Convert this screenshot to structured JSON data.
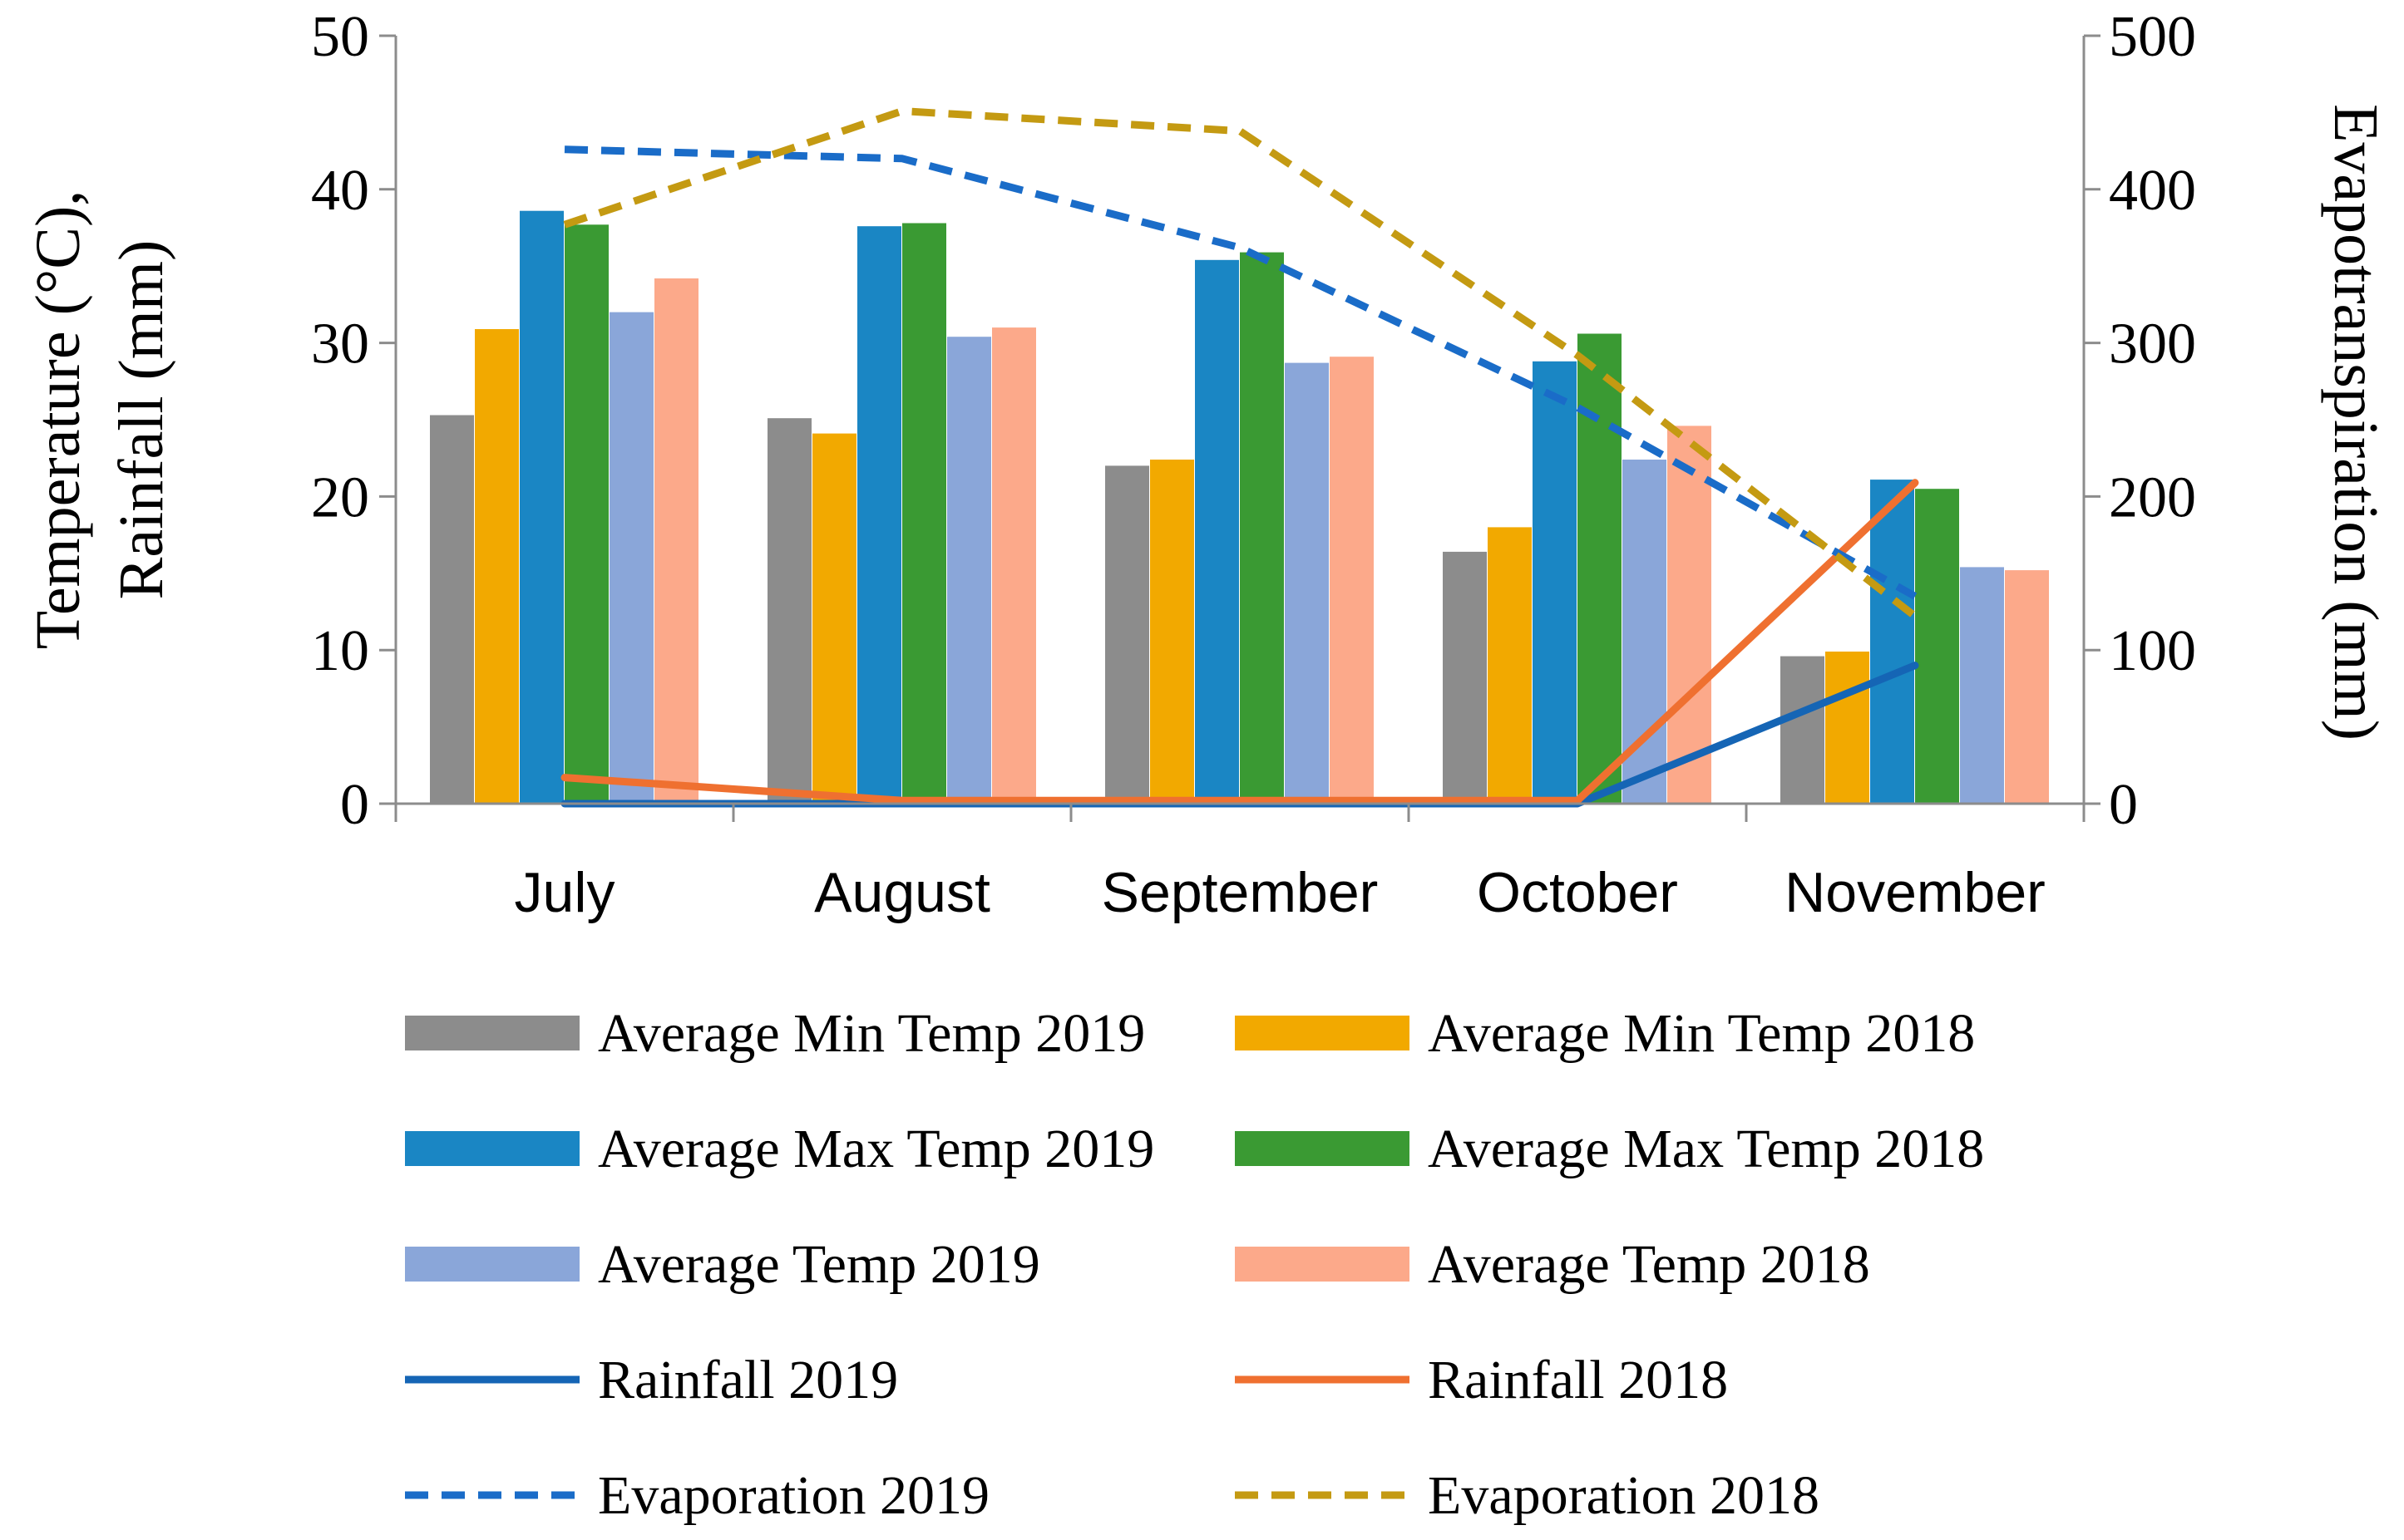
{
  "chart_data": {
    "type": "bar",
    "categories": [
      "July",
      "August",
      "September",
      "October",
      "November"
    ],
    "ylabel_lines": [
      "Temperature (°C),",
      "Rainfall (mm)"
    ],
    "y2label": "Evapotranspiration  (mm)",
    "ylim": [
      0,
      50
    ],
    "y_ticks": [
      0,
      10,
      20,
      30,
      40,
      50
    ],
    "y2lim": [
      0,
      500
    ],
    "y2_ticks": [
      0,
      100,
      200,
      300,
      400,
      500
    ],
    "legend_position": "bottom",
    "grid": false,
    "bar_series": [
      {
        "name": "Average Min Temp 2019",
        "color": "#8c8c8c",
        "values": [
          25.3,
          25.1,
          22.0,
          16.4,
          9.6
        ]
      },
      {
        "name": "Average Min Temp 2018",
        "color": "#f2a900",
        "values": [
          30.9,
          24.1,
          22.4,
          18.0,
          9.9
        ]
      },
      {
        "name": "Average Max Temp 2019",
        "color": "#1a86c4",
        "values": [
          38.6,
          37.6,
          35.4,
          28.8,
          21.1
        ]
      },
      {
        "name": "Average Max Temp 2018",
        "color": "#3a9a33",
        "values": [
          37.7,
          37.8,
          35.9,
          30.6,
          20.5
        ]
      },
      {
        "name": "Average Temp 2019",
        "color": "#8aa6d9",
        "values": [
          32.0,
          30.4,
          28.7,
          22.4,
          15.4
        ]
      },
      {
        "name": "Average Temp 2018",
        "color": "#fca98a",
        "values": [
          34.2,
          31.0,
          29.1,
          24.6,
          15.2
        ]
      }
    ],
    "line_series": [
      {
        "name": "Rainfall 2019",
        "color": "#1565b5",
        "dashed": false,
        "axis": "left",
        "values": [
          0,
          0,
          0,
          0,
          9.0
        ]
      },
      {
        "name": "Rainfall 2018",
        "color": "#ef7030",
        "dashed": false,
        "axis": "left",
        "values": [
          1.7,
          0.2,
          0.2,
          0.2,
          20.9
        ]
      },
      {
        "name": "Evaporation 2019",
        "color": "#1a6cc8",
        "dashed": true,
        "axis": "right",
        "values": [
          426,
          420,
          362,
          258,
          135
        ]
      },
      {
        "name": "Evaporation 2018",
        "color": "#c49a12",
        "dashed": true,
        "axis": "right",
        "values": [
          377,
          451,
          438,
          292,
          122
        ]
      }
    ]
  }
}
